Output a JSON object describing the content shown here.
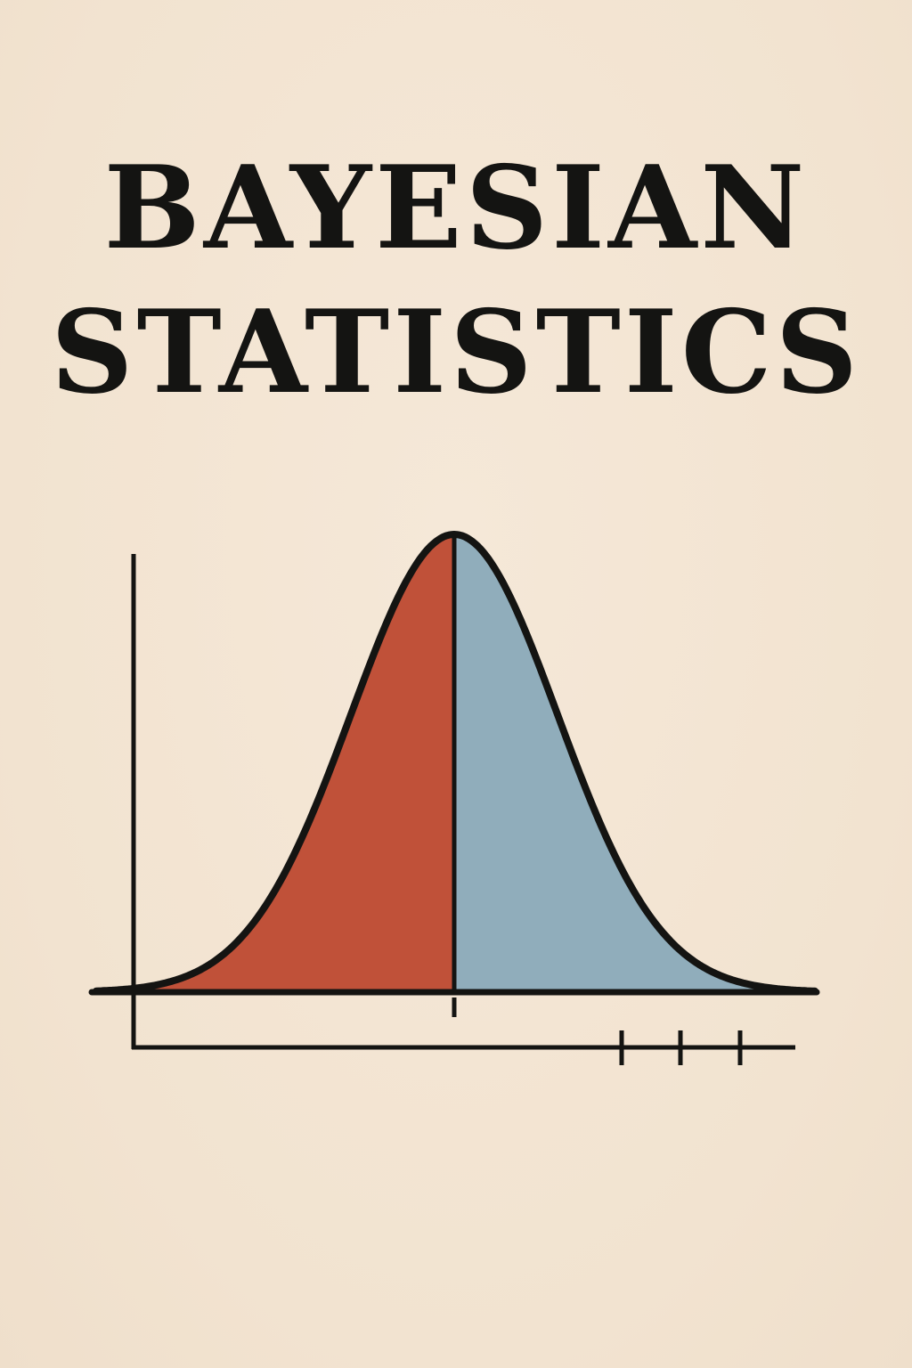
{
  "cover": {
    "title_line_1": "BAYESIAN",
    "title_line_2": "STATISTICS"
  },
  "colors": {
    "background": "#f3e5d3",
    "ink": "#141412",
    "left_fill": "#c05139",
    "right_fill": "#90adbb"
  },
  "illustration": {
    "curve": "bell-shaped",
    "split": "center",
    "extra_ticks": 3
  }
}
